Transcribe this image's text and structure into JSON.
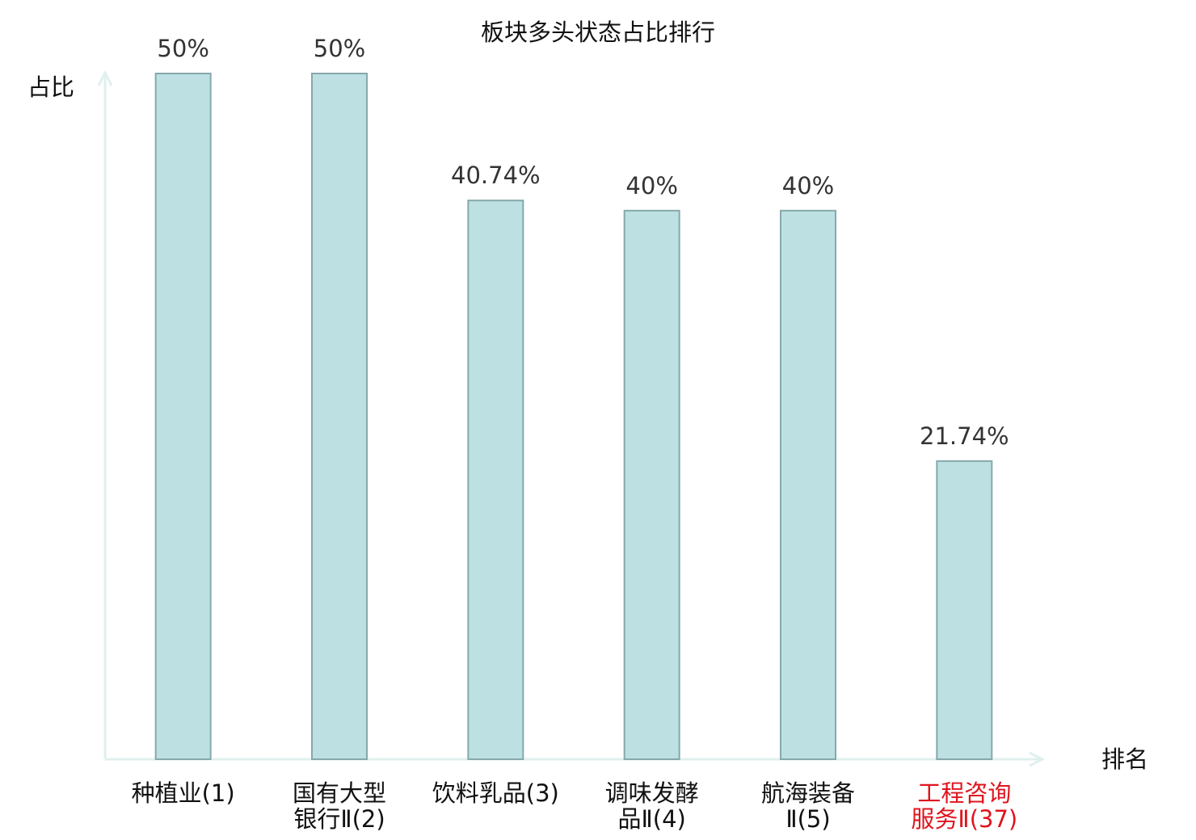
{
  "chart_data": {
    "type": "bar",
    "title": "板块多头状态占比排行",
    "y_label": "占比",
    "x_label": "排名",
    "categories": [
      "种植业(1)",
      "国有大型银行Ⅱ(2)",
      "饮料乳品(3)",
      "调味发酵品Ⅱ(4)",
      "航海装备Ⅱ(5)",
      "工程咨询服务Ⅱ(37)"
    ],
    "category_colors": [
      "#111111",
      "#111111",
      "#111111",
      "#111111",
      "#111111",
      "#e0141e"
    ],
    "values": [
      50,
      50,
      40.74,
      40,
      40,
      21.74
    ],
    "value_labels": [
      "50%",
      "50%",
      "40.74%",
      "40%",
      "40%",
      "21.74%"
    ],
    "color": "#bde0e3",
    "edge_color": "#86a8ab",
    "ylim": [
      0,
      50
    ]
  }
}
